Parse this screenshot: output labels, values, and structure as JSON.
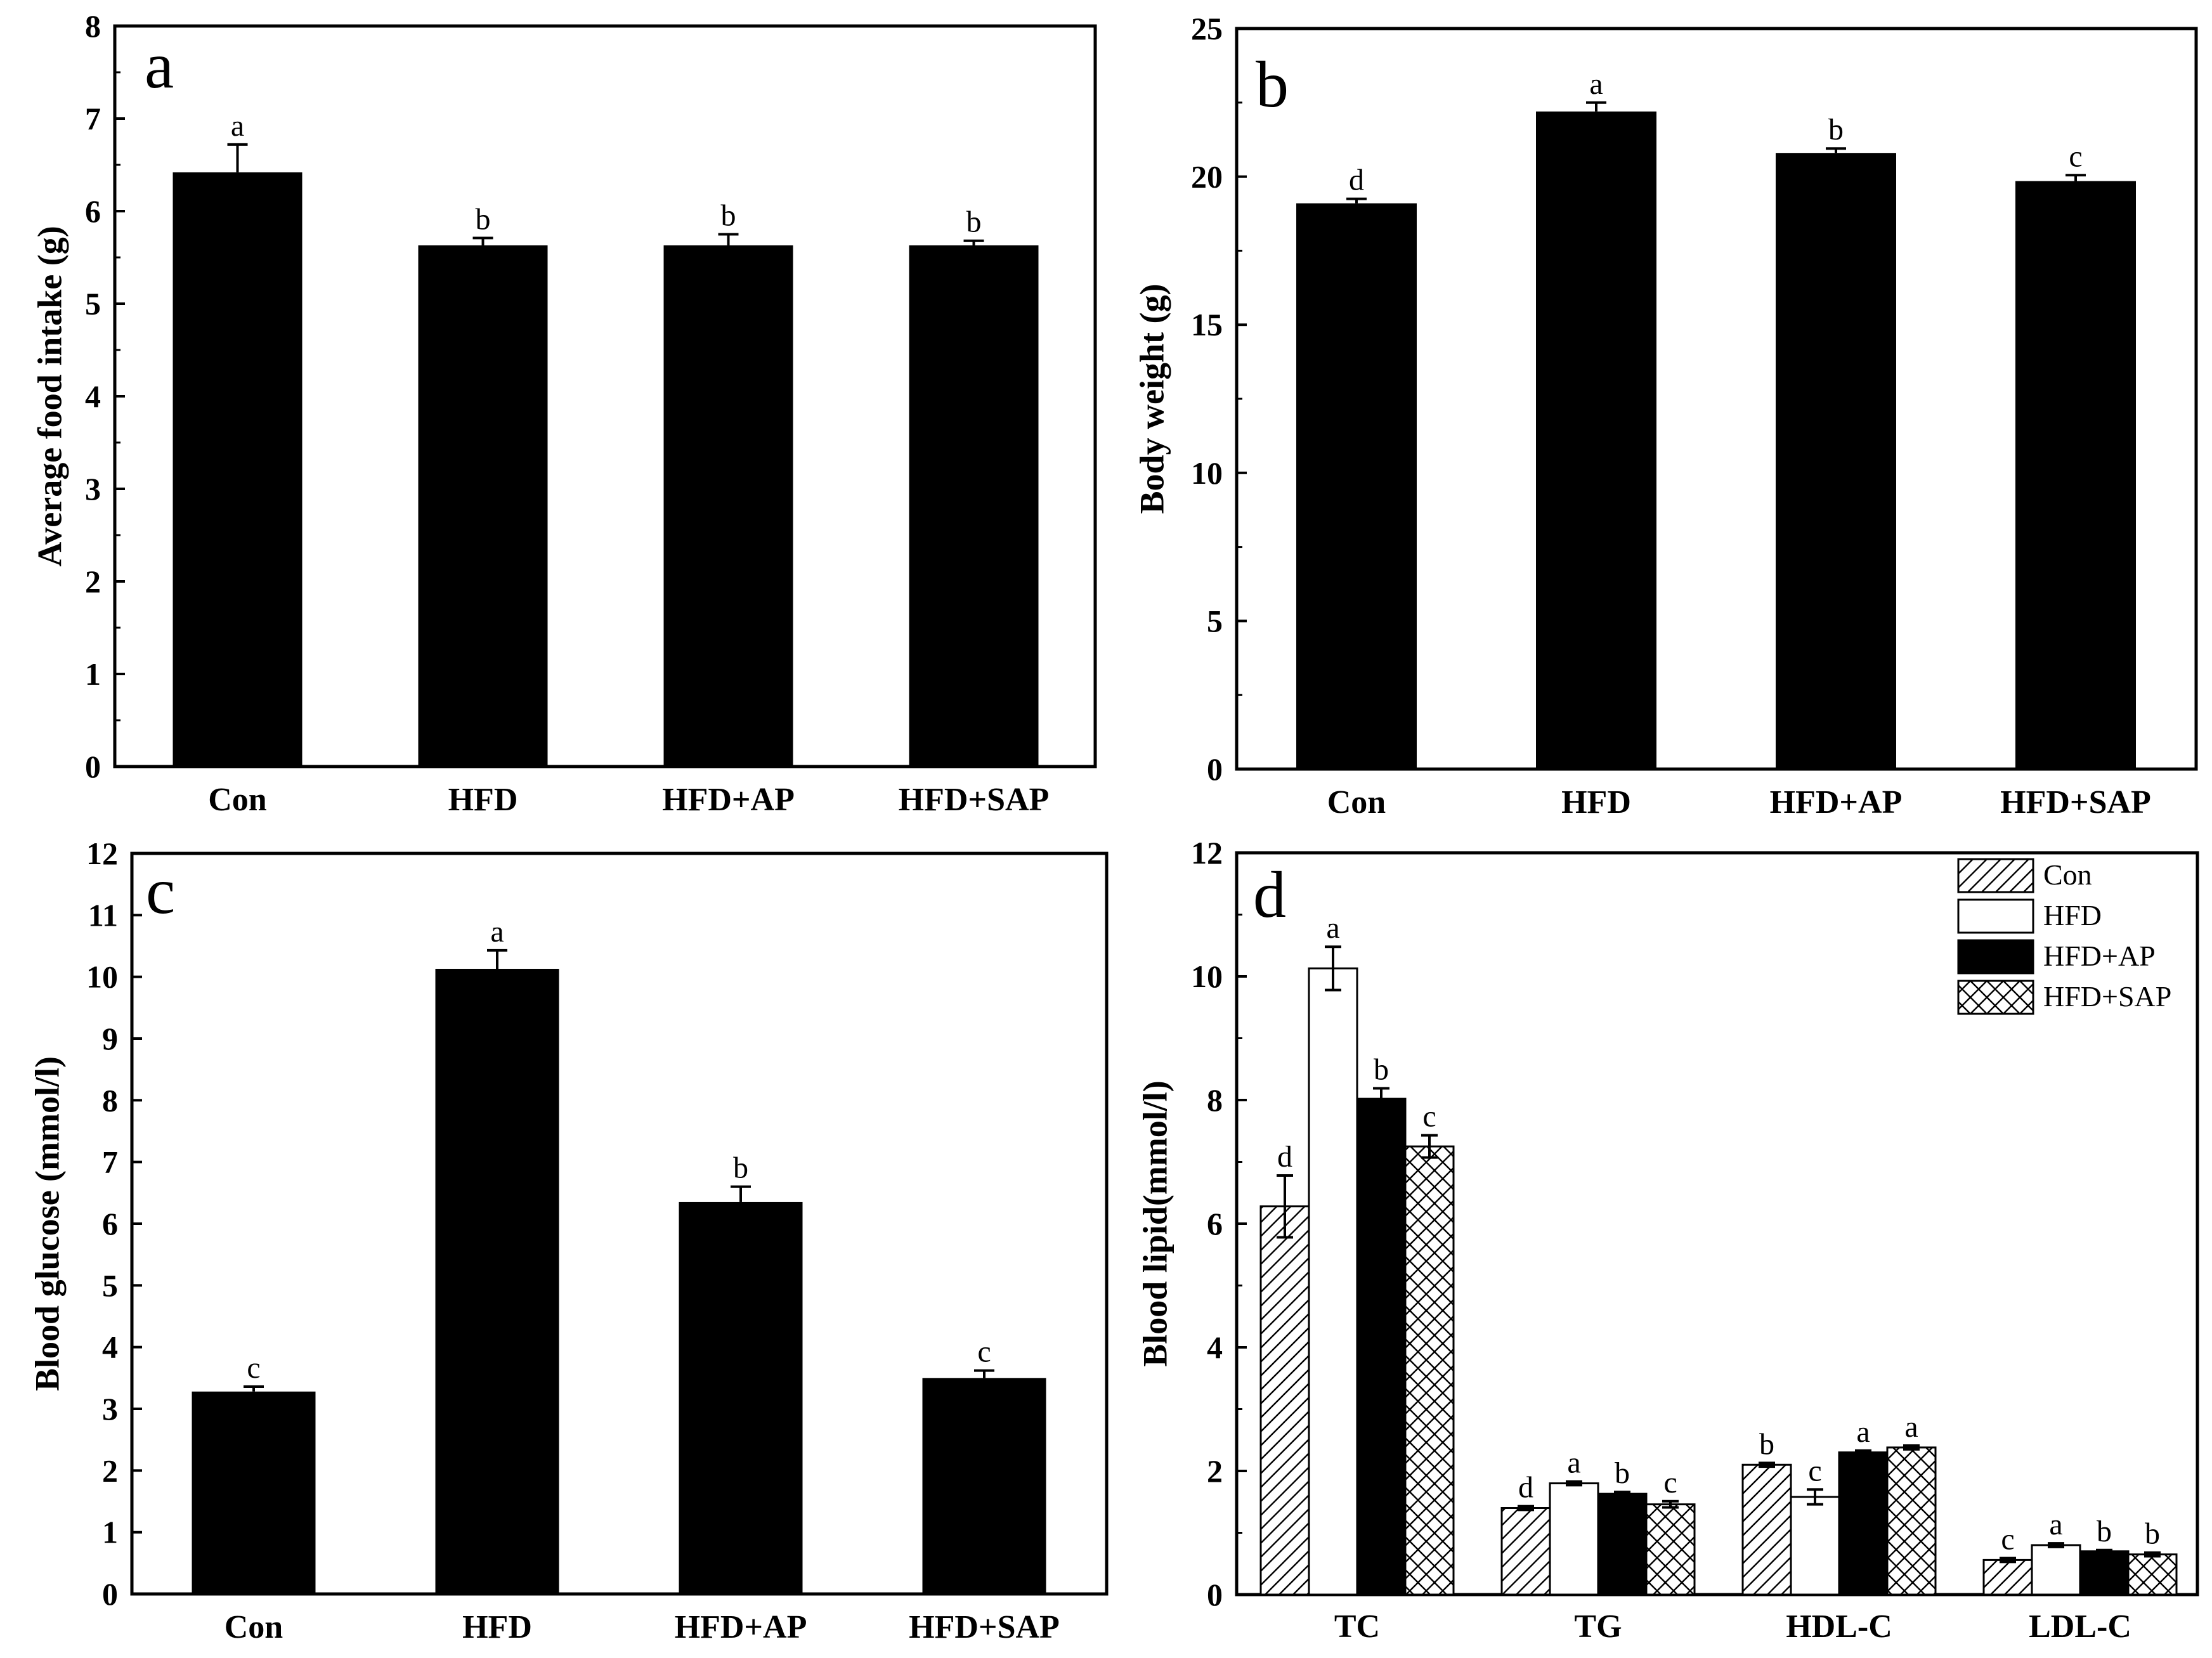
{
  "chart_data": [
    {
      "panel": "a",
      "type": "bar",
      "categories": [
        "Con",
        "HFD",
        "HFD+AP",
        "HFD+SAP"
      ],
      "values": [
        6.42,
        5.63,
        5.63,
        5.63
      ],
      "errors": [
        0.3,
        0.08,
        0.12,
        0.05
      ],
      "significance": [
        "a",
        "b",
        "b",
        "b"
      ],
      "ylabel": "Average food intake (g)",
      "ylim": [
        0,
        8
      ],
      "yticks": [
        "0",
        "1",
        "2",
        "3",
        "4",
        "5",
        "6",
        "7",
        "8"
      ],
      "colors": {
        "bar": "#000000"
      }
    },
    {
      "panel": "b",
      "type": "bar",
      "categories": [
        "Con",
        "HFD",
        "HFD+AP",
        "HFD+SAP"
      ],
      "values": [
        19.1,
        22.2,
        20.8,
        19.85
      ],
      "errors": [
        0.15,
        0.3,
        0.15,
        0.2
      ],
      "significance": [
        "d",
        "a",
        "b",
        "c"
      ],
      "ylabel": "Body weight (g)",
      "ylim": [
        0,
        25
      ],
      "yticks": [
        "0",
        "5",
        "10",
        "15",
        "20",
        "25"
      ],
      "colors": {
        "bar": "#000000"
      }
    },
    {
      "panel": "c",
      "type": "bar",
      "categories": [
        "Con",
        "HFD",
        "HFD+AP",
        "HFD+SAP"
      ],
      "values": [
        3.28,
        10.13,
        6.35,
        3.5
      ],
      "errors": [
        0.08,
        0.3,
        0.25,
        0.12
      ],
      "significance": [
        "c",
        "a",
        "b",
        "c"
      ],
      "ylabel": "Blood glucose (mmol/l)",
      "ylim": [
        0,
        12
      ],
      "yticks": [
        "0",
        "1",
        "2",
        "3",
        "4",
        "5",
        "6",
        "7",
        "8",
        "9",
        "10",
        "11",
        "12"
      ],
      "colors": {
        "bar": "#000000"
      }
    },
    {
      "panel": "d",
      "type": "bar",
      "categories": [
        "TC",
        "TG",
        "HDL-C",
        "LDL-C"
      ],
      "series": [
        {
          "name": "Con",
          "pattern": "hatch",
          "values": [
            6.28,
            1.4,
            2.1,
            0.56
          ],
          "errors": [
            0.5,
            0.03,
            0.03,
            0.03
          ],
          "significance": [
            "d",
            "d",
            "b",
            "c"
          ]
        },
        {
          "name": "HFD",
          "pattern": "white",
          "values": [
            10.13,
            1.8,
            1.58,
            0.8
          ],
          "errors": [
            0.35,
            0.03,
            0.12,
            0.03
          ],
          "significance": [
            "a",
            "a",
            "c",
            "a"
          ]
        },
        {
          "name": "HFD+AP",
          "pattern": "black",
          "values": [
            8.02,
            1.63,
            2.3,
            0.7
          ],
          "errors": [
            0.17,
            0.03,
            0.03,
            0.02
          ],
          "significance": [
            "b",
            "b",
            "a",
            "b"
          ]
        },
        {
          "name": "HFD+SAP",
          "pattern": "crosshatch",
          "values": [
            7.25,
            1.46,
            2.38,
            0.65
          ],
          "errors": [
            0.18,
            0.05,
            0.03,
            0.03
          ],
          "significance": [
            "c",
            "c",
            "a",
            "b"
          ]
        }
      ],
      "ylabel": "Blood lipid(mmol/l)",
      "ylim": [
        0,
        12
      ],
      "yticks": [
        "0",
        "2",
        "4",
        "6",
        "8",
        "10",
        "12"
      ],
      "legend": "top-right"
    }
  ]
}
